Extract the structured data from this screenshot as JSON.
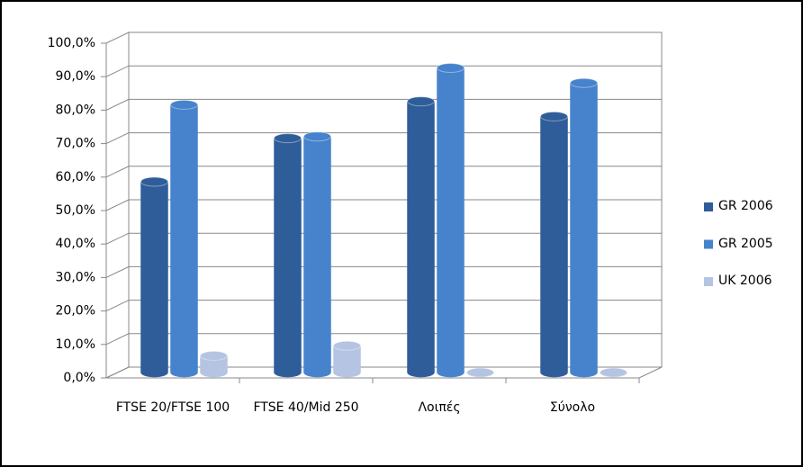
{
  "chart_data": {
    "type": "bar3d",
    "categories": [
      "FTSE 20/FTSE 100",
      "FTSE 40/Mid 250",
      "Λοιπές",
      "Σύνολο"
    ],
    "series": [
      {
        "name": "GR 2006",
        "color": "#2f5d99",
        "values": [
          57,
          70,
          81,
          76.5
        ]
      },
      {
        "name": "GR 2005",
        "color": "#4683cc",
        "values": [
          80,
          70.5,
          91,
          86.5
        ]
      },
      {
        "name": "UK 2006",
        "color": "#b4c4e2",
        "values": [
          5,
          8,
          0,
          0
        ]
      }
    ],
    "ylim": [
      0,
      100
    ],
    "yticks": [
      {
        "value": 0,
        "label": "0,0%"
      },
      {
        "value": 10,
        "label": "10,0%"
      },
      {
        "value": 20,
        "label": "20,0%"
      },
      {
        "value": 30,
        "label": "30,0%"
      },
      {
        "value": 40,
        "label": "40,0%"
      },
      {
        "value": 50,
        "label": "50,0%"
      },
      {
        "value": 60,
        "label": "60,0%"
      },
      {
        "value": 70,
        "label": "70,0%"
      },
      {
        "value": 80,
        "label": "80,0%"
      },
      {
        "value": 90,
        "label": "90,0%"
      },
      {
        "value": 100,
        "label": "100,0%"
      }
    ],
    "grid": true,
    "legend": "right"
  }
}
